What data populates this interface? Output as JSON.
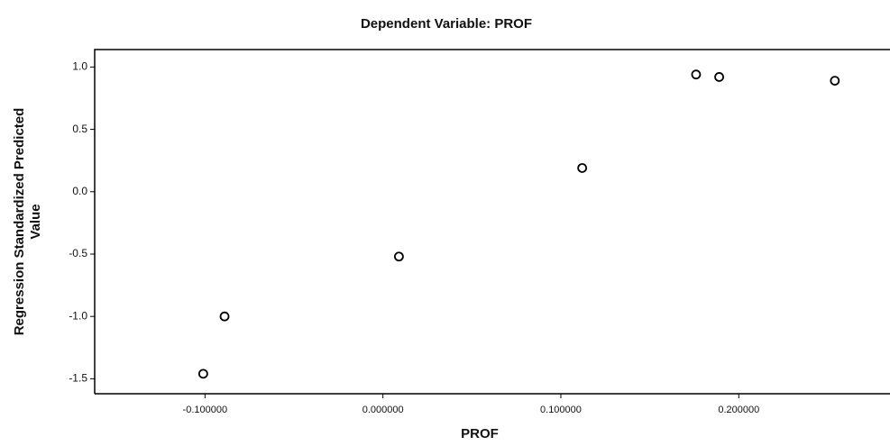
{
  "chart_data": {
    "type": "scatter",
    "title": "Dependent Variable: PROF",
    "xlabel": "PROF",
    "ylabel": [
      "Regression Standardized Predicted",
      "Value"
    ],
    "x": [
      -0.101,
      -0.089,
      0.009,
      0.112,
      0.176,
      0.189,
      0.254
    ],
    "values": [
      -1.46,
      -1.0,
      -0.52,
      0.19,
      0.94,
      0.92,
      0.89
    ],
    "color": "#000000",
    "xlim": [
      -0.162,
      0.285
    ],
    "xticks": [
      {
        "value": -0.1,
        "label": "-0.100000"
      },
      {
        "value": 0,
        "label": "0.000000"
      },
      {
        "value": 0.1,
        "label": "0.100000"
      },
      {
        "value": 0.2,
        "label": "0.200000"
      }
    ],
    "ylim": [
      -1.62,
      1.14
    ],
    "yticks": [
      {
        "value": -1.5,
        "label": "-1.5"
      },
      {
        "value": -1,
        "label": "-1.0"
      },
      {
        "value": -0.5,
        "label": "-0.5"
      },
      {
        "value": 0,
        "label": "0.0"
      },
      {
        "value": 0.5,
        "label": "0.5"
      },
      {
        "value": 1,
        "label": "1.0"
      }
    ]
  }
}
